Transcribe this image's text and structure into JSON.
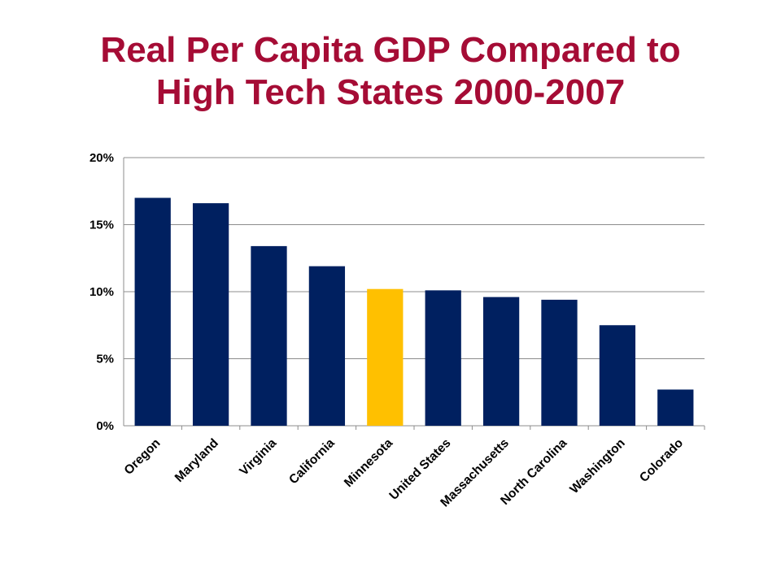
{
  "title_line1": "Real Per Capita GDP Compared to",
  "title_line2": "High Tech States 2000-2007",
  "colors": {
    "title": "#A50C35",
    "bar": "#002060",
    "highlight": "#FFC000",
    "grid": "#8C8C8C"
  },
  "chart_data": {
    "type": "bar",
    "title": "Real Per Capita GDP Compared to High Tech States 2000-2007",
    "xlabel": "",
    "ylabel": "",
    "ylim": [
      0,
      20
    ],
    "yticks": [
      0,
      5,
      10,
      15,
      20
    ],
    "ytick_labels": [
      "0%",
      "5%",
      "10%",
      "15%",
      "20%"
    ],
    "grid": true,
    "categories": [
      "Oregon",
      "Maryland",
      "Virginia",
      "California",
      "Minnesota",
      "United States",
      "Massachusetts",
      "North Carolina",
      "Washington",
      "Colorado"
    ],
    "values": [
      17.0,
      16.6,
      13.4,
      11.9,
      10.2,
      10.1,
      9.6,
      9.4,
      7.5,
      2.7
    ],
    "highlight_category": "Minnesota"
  }
}
